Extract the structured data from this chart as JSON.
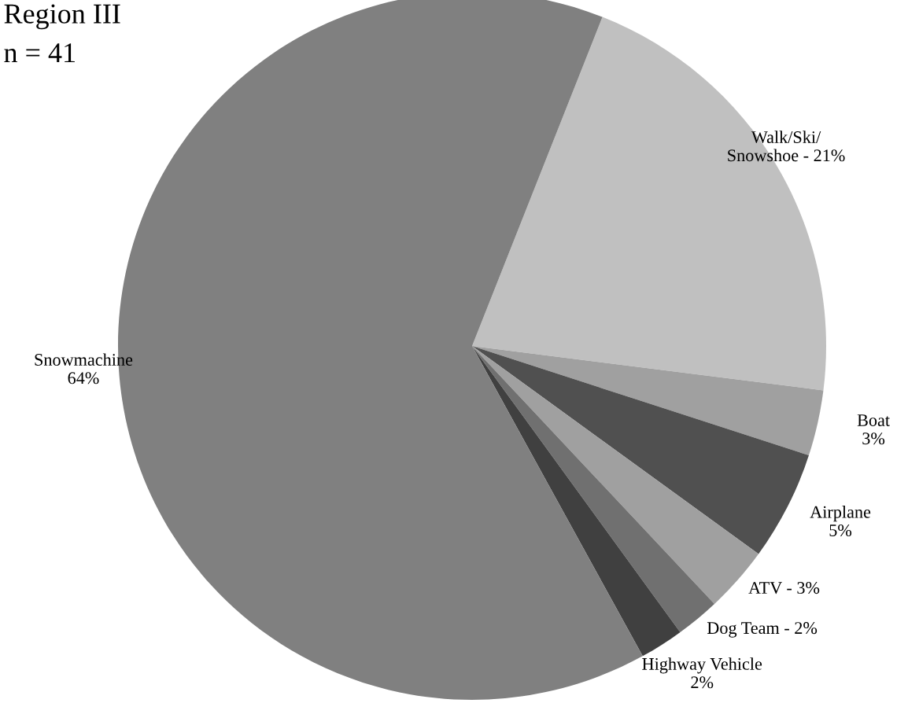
{
  "chart_data": {
    "type": "pie",
    "title": "Region III",
    "subtitle": "n = 41",
    "categories": [
      "Walk/Ski/ Snowshoe",
      "Boat",
      "Airplane",
      "ATV",
      "Dog Team",
      "Highway Vehicle",
      "Snowmachine"
    ],
    "values": [
      21,
      3,
      5,
      3,
      2,
      2,
      64
    ],
    "colors": [
      "#c0c0c0",
      "#a0a0a0",
      "#505050",
      "#a0a0a0",
      "#707070",
      "#404040",
      "#808080"
    ],
    "value_labels": [
      "21%",
      "3%",
      "5%",
      "3%",
      "2%",
      "2%",
      "64%"
    ]
  }
}
